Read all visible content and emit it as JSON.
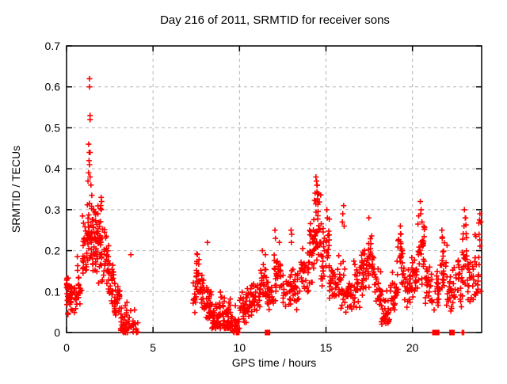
{
  "window": {
    "background": "#ffffff"
  },
  "chart_data": {
    "type": "scatter",
    "title": "Day 216 of 2011, SRMTID for receiver sons",
    "xlabel": "GPS time / hours",
    "ylabel": "SRMTID / TECUs",
    "xlim": [
      0,
      24
    ],
    "ylim": [
      0,
      0.7
    ],
    "xticks": [
      0,
      5,
      10,
      15,
      20
    ],
    "yticks": [
      0,
      0.1,
      0.2,
      0.3,
      0.4,
      0.5,
      0.6,
      0.7
    ],
    "grid": true,
    "legend": "none",
    "marker": {
      "shape": "plus",
      "color": "#ff0000",
      "size": 7
    },
    "grid_color": "#b3b3b3",
    "axis_color": "#000000",
    "series_name": "SRMTID",
    "data_gap_hours": [
      4.15,
      7.3
    ],
    "max_point": [
      1.33,
      0.62
    ],
    "point_spec": {
      "seed": 20110216,
      "clusters": [
        [
          0.0,
          0.1,
          0.03,
          0.17,
          20,
          "mid"
        ],
        [
          0.1,
          0.3,
          0.03,
          0.14,
          22,
          "mid"
        ],
        [
          0.3,
          0.6,
          0.04,
          0.12,
          14,
          "mid"
        ],
        [
          0.6,
          0.9,
          0.06,
          0.19,
          18,
          "mid"
        ],
        [
          0.9,
          1.2,
          0.09,
          0.3,
          26,
          "mid"
        ],
        [
          1.2,
          1.55,
          0.13,
          0.35,
          40,
          "mid"
        ],
        [
          1.55,
          1.85,
          0.14,
          0.33,
          36,
          "mid"
        ],
        [
          1.85,
          2.15,
          0.1,
          0.33,
          30,
          "mid"
        ],
        [
          2.15,
          2.45,
          0.08,
          0.28,
          26,
          "mid"
        ],
        [
          2.45,
          2.75,
          0.04,
          0.18,
          22,
          "mid"
        ],
        [
          2.75,
          3.1,
          0.02,
          0.13,
          30,
          "mid"
        ],
        [
          3.1,
          3.5,
          0.0,
          0.1,
          28,
          "low"
        ],
        [
          3.5,
          3.85,
          0.01,
          0.08,
          12,
          "low"
        ],
        [
          3.85,
          4.15,
          0.0,
          0.06,
          9,
          "low"
        ],
        [
          7.3,
          7.5,
          0.04,
          0.15,
          12,
          "mid"
        ],
        [
          7.5,
          7.75,
          0.07,
          0.21,
          22,
          "mid"
        ],
        [
          7.75,
          8.0,
          0.04,
          0.17,
          20,
          "mid"
        ],
        [
          8.0,
          8.4,
          0.02,
          0.12,
          30,
          "mid"
        ],
        [
          8.4,
          8.8,
          0.01,
          0.1,
          34,
          "low"
        ],
        [
          8.8,
          9.2,
          0.01,
          0.12,
          32,
          "low"
        ],
        [
          9.2,
          9.6,
          0.01,
          0.09,
          30,
          "low"
        ],
        [
          9.6,
          10.0,
          0.0,
          0.08,
          24,
          "low"
        ],
        [
          10.0,
          10.4,
          0.02,
          0.1,
          24,
          "mid"
        ],
        [
          10.4,
          10.8,
          0.03,
          0.12,
          24,
          "mid"
        ],
        [
          10.8,
          11.2,
          0.04,
          0.14,
          24,
          "mid"
        ],
        [
          11.2,
          11.6,
          0.05,
          0.18,
          24,
          "mid"
        ],
        [
          11.6,
          12.0,
          0.04,
          0.15,
          24,
          "mid"
        ],
        [
          12.0,
          12.5,
          0.06,
          0.2,
          30,
          "mid"
        ],
        [
          12.5,
          13.0,
          0.05,
          0.16,
          26,
          "mid"
        ],
        [
          13.0,
          13.5,
          0.05,
          0.17,
          26,
          "mid"
        ],
        [
          13.5,
          14.0,
          0.07,
          0.24,
          28,
          "mid"
        ],
        [
          14.0,
          14.3,
          0.1,
          0.3,
          26,
          "mid"
        ],
        [
          14.3,
          14.7,
          0.15,
          0.38,
          40,
          "mid"
        ],
        [
          14.7,
          15.0,
          0.08,
          0.28,
          22,
          "mid"
        ],
        [
          15.0,
          15.2,
          0.12,
          0.3,
          14,
          "mid"
        ],
        [
          15.2,
          15.7,
          0.05,
          0.18,
          28,
          "mid"
        ],
        [
          15.7,
          16.1,
          0.05,
          0.2,
          24,
          "mid"
        ],
        [
          16.1,
          16.6,
          0.04,
          0.15,
          28,
          "mid"
        ],
        [
          16.6,
          17.0,
          0.05,
          0.18,
          24,
          "mid"
        ],
        [
          17.0,
          17.4,
          0.08,
          0.23,
          28,
          "mid"
        ],
        [
          17.4,
          17.8,
          0.1,
          0.27,
          30,
          "mid"
        ],
        [
          17.8,
          18.2,
          0.05,
          0.17,
          26,
          "mid"
        ],
        [
          18.2,
          18.7,
          0.02,
          0.12,
          30,
          "low"
        ],
        [
          18.7,
          19.1,
          0.04,
          0.15,
          24,
          "mid"
        ],
        [
          19.1,
          19.5,
          0.08,
          0.26,
          28,
          "mid"
        ],
        [
          19.5,
          19.9,
          0.05,
          0.17,
          24,
          "mid"
        ],
        [
          19.9,
          20.3,
          0.07,
          0.2,
          24,
          "mid"
        ],
        [
          20.3,
          20.7,
          0.09,
          0.32,
          28,
          "mid"
        ],
        [
          20.7,
          21.1,
          0.05,
          0.17,
          24,
          "mid"
        ],
        [
          21.1,
          21.6,
          0.04,
          0.16,
          26,
          "mid"
        ],
        [
          21.6,
          22.0,
          0.05,
          0.25,
          24,
          "mid"
        ],
        [
          22.0,
          22.4,
          0.04,
          0.16,
          24,
          "mid"
        ],
        [
          22.4,
          22.9,
          0.05,
          0.2,
          26,
          "mid"
        ],
        [
          22.9,
          23.2,
          0.08,
          0.3,
          18,
          "mid"
        ],
        [
          23.2,
          23.6,
          0.05,
          0.18,
          22,
          "mid"
        ],
        [
          23.6,
          23.98,
          0.07,
          0.3,
          22,
          "mid"
        ]
      ],
      "outliers": [
        [
          1.33,
          0.62
        ],
        [
          1.33,
          0.6
        ],
        [
          1.36,
          0.53
        ],
        [
          1.36,
          0.52
        ],
        [
          1.28,
          0.46
        ],
        [
          1.31,
          0.44
        ],
        [
          1.36,
          0.44
        ],
        [
          1.3,
          0.42
        ],
        [
          1.33,
          0.41
        ],
        [
          1.28,
          0.39
        ],
        [
          1.36,
          0.38
        ],
        [
          1.24,
          0.37
        ],
        [
          1.41,
          0.36
        ],
        [
          2.0,
          0.33
        ],
        [
          2.03,
          0.32
        ],
        [
          1.98,
          0.31
        ],
        [
          3.72,
          0.19
        ],
        [
          8.15,
          0.22
        ],
        [
          11.32,
          0.2
        ],
        [
          11.5,
          0.19
        ],
        [
          12.05,
          0.25
        ],
        [
          12.08,
          0.23
        ],
        [
          12.3,
          0.22
        ],
        [
          12.98,
          0.25
        ],
        [
          13.02,
          0.24
        ],
        [
          13.0,
          0.22
        ],
        [
          14.42,
          0.38
        ],
        [
          14.45,
          0.37
        ],
        [
          14.48,
          0.36
        ],
        [
          15.05,
          0.3
        ],
        [
          15.08,
          0.28
        ],
        [
          15.95,
          0.27
        ],
        [
          15.97,
          0.29
        ],
        [
          16.02,
          0.31
        ],
        [
          16.05,
          0.26
        ],
        [
          17.48,
          0.28
        ],
        [
          19.3,
          0.26
        ],
        [
          19.33,
          0.24
        ],
        [
          20.45,
          0.32
        ],
        [
          20.5,
          0.3
        ],
        [
          20.48,
          0.29
        ],
        [
          20.55,
          0.27
        ],
        [
          21.7,
          0.25
        ],
        [
          21.72,
          0.23
        ],
        [
          22.98,
          0.26
        ],
        [
          23.0,
          0.3
        ],
        [
          23.05,
          0.28
        ],
        [
          23.85,
          0.24
        ],
        [
          23.9,
          0.29
        ],
        [
          23.95,
          0.27
        ]
      ],
      "zero_squares": [
        11.62,
        21.3,
        21.4,
        22.28
      ],
      "zero_plus": [
        3.3,
        3.42,
        3.52,
        4.05,
        9.82,
        9.9,
        9.96,
        21.2,
        21.48,
        22.35,
        22.88,
        22.96
      ]
    }
  }
}
